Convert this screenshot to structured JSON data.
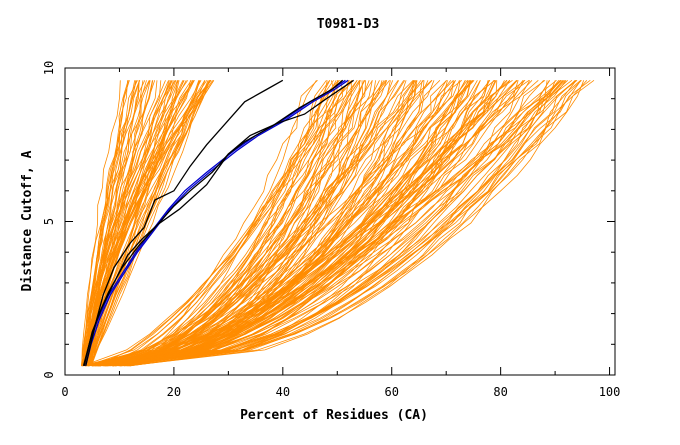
{
  "chart_data": {
    "type": "line",
    "title": "T0981-D3",
    "xlabel": "Percent of Residues (CA)",
    "ylabel": "Distance Cutoff, A",
    "xlim": [
      0,
      101
    ],
    "ylim": [
      0,
      10
    ],
    "x_ticks": [
      "0",
      "20",
      "40",
      "60",
      "80",
      "100"
    ],
    "y_ticks": [
      "0",
      "5",
      "10"
    ],
    "grid": false,
    "legend": "none",
    "colors": {
      "bundle": "#ff8c00",
      "black_models": "#000000",
      "blue_model": "#0000cc",
      "axes": "#000000"
    },
    "series": [
      {
        "color": "#0000cc",
        "x": [
          3.5,
          4.5,
          6,
          8,
          10.5,
          13,
          16,
          19,
          22,
          26,
          31,
          35,
          40,
          45,
          49,
          51.5
        ],
        "y": [
          0.3,
          1,
          1.8,
          2.6,
          3.3,
          4,
          4.7,
          5.4,
          6,
          6.6,
          7.3,
          7.8,
          8.3,
          8.9,
          9.3,
          9.6
        ]
      },
      {
        "color": "#0000cc",
        "x": [
          3.8,
          4.8,
          6.3,
          8.3,
          10.8,
          13.3,
          16.3,
          19.3,
          22.5,
          26.5,
          31.5,
          35.5,
          40.5,
          45.5,
          49.5,
          52
        ],
        "y": [
          0.3,
          1,
          1.8,
          2.6,
          3.3,
          4,
          4.7,
          5.4,
          6,
          6.6,
          7.3,
          7.8,
          8.3,
          8.9,
          9.3,
          9.6
        ]
      },
      {
        "color": "#000000",
        "x": [
          3.8,
          5.5,
          7,
          9,
          12,
          14.5,
          16.5,
          20,
          23,
          26,
          30,
          33,
          37,
          40
        ],
        "y": [
          0.3,
          1.6,
          2.6,
          3.5,
          4.3,
          4.8,
          5.7,
          6,
          6.8,
          7.5,
          8.3,
          8.9,
          9.3,
          9.6
        ]
      },
      {
        "color": "#000000",
        "x": [
          3.5,
          5,
          6.8,
          9,
          11.5,
          14,
          17,
          21,
          26,
          30,
          34,
          39,
          44,
          48,
          53
        ],
        "y": [
          0.3,
          1.4,
          2.2,
          3,
          3.9,
          4.4,
          4.9,
          5.4,
          6.2,
          7.2,
          7.8,
          8.2,
          8.5,
          9,
          9.6
        ]
      },
      {
        "color": "#000000",
        "x": [
          3.4,
          4.6,
          6,
          8,
          10.5,
          13.5,
          17,
          20,
          23,
          27,
          30,
          33,
          38,
          43,
          49,
          51
        ],
        "y": [
          0.3,
          1.1,
          1.9,
          2.7,
          3.5,
          4.2,
          4.9,
          5.5,
          6,
          6.6,
          7.2,
          7.6,
          8.1,
          8.7,
          9.3,
          9.6
        ]
      }
    ]
  }
}
